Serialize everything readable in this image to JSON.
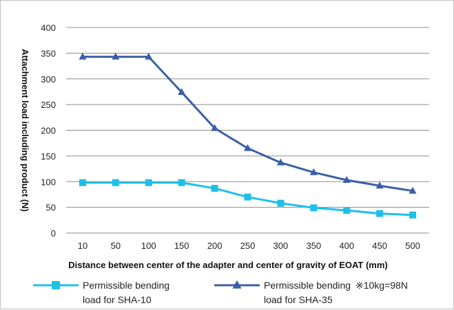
{
  "chart_data": {
    "type": "line",
    "categories": [
      "10",
      "50",
      "100",
      "150",
      "200",
      "250",
      "300",
      "350",
      "400",
      "450",
      "500"
    ],
    "series": [
      {
        "name": [
          "Permissible bending",
          "load for SHA-10"
        ],
        "color": "#1ec0e8",
        "marker": "square",
        "values": [
          98,
          98,
          98,
          98,
          87,
          70,
          58,
          49,
          44,
          38,
          35
        ]
      },
      {
        "name": [
          "Permissible bending",
          "load for SHA-35"
        ],
        "color": "#3b5ea8",
        "marker": "triangle",
        "values": [
          343,
          343,
          343,
          274,
          204,
          165,
          137,
          118,
          103,
          92,
          82
        ]
      }
    ],
    "xlabel": "Distance between center of the adapter and center of gravity of EOAT (mm)",
    "ylabel": "Attachment load including product (N)",
    "ylim": [
      0,
      400
    ],
    "yticks": [
      0,
      50,
      100,
      150,
      200,
      250,
      300,
      350,
      400
    ],
    "grid": true,
    "legend_position": "bottom",
    "note": "※10kg=98N"
  }
}
